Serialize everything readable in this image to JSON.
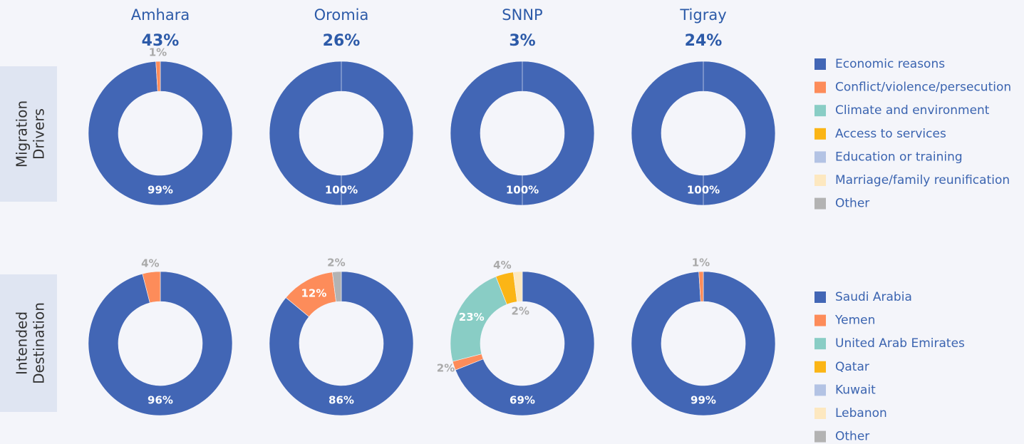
{
  "region_shares": {
    "values": [
      43,
      26,
      3,
      24
    ],
    "value_labels": [
      "43%",
      "26%",
      "3%",
      "24%"
    ]
  },
  "chart_data": [
    {
      "type": "donut",
      "row_label": [
        "Migration",
        "Drivers"
      ],
      "categories": [
        "Economic reasons",
        "Conflict/violence/persecution",
        "Climate and environment",
        "Access to services",
        "Education or training",
        "Marriage/family reunification",
        "Other"
      ],
      "colors": [
        "#4266b5",
        "#fd8c5a",
        "#89cdc5",
        "#fbb516",
        "#b3c3e4",
        "#fde8c0",
        "#b3b3b3"
      ],
      "series": [
        {
          "name": "Amhara",
          "values": [
            99,
            1,
            null,
            null,
            null,
            null,
            null
          ],
          "value_labels": [
            "99%",
            "1%",
            null,
            null,
            null,
            null,
            null
          ]
        },
        {
          "name": "Oromia",
          "values": [
            100,
            null,
            null,
            null,
            null,
            null,
            null
          ],
          "value_labels": [
            "100%",
            null,
            null,
            null,
            null,
            null,
            null
          ]
        },
        {
          "name": "SNNP",
          "values": [
            100,
            null,
            null,
            null,
            null,
            null,
            null
          ],
          "value_labels": [
            "100%",
            null,
            null,
            null,
            null,
            null,
            null
          ]
        },
        {
          "name": "Tigray",
          "values": [
            100,
            null,
            null,
            null,
            null,
            null,
            null
          ],
          "value_labels": [
            "100%",
            null,
            null,
            null,
            null,
            null,
            null
          ]
        }
      ]
    },
    {
      "type": "donut",
      "row_label": [
        "Intended",
        "Destination"
      ],
      "categories": [
        "Saudi Arabia",
        "Yemen",
        "United Arab Emirates",
        "Qatar",
        "Kuwait",
        "Lebanon",
        "Other"
      ],
      "colors": [
        "#4266b5",
        "#fd8c5a",
        "#89cdc5",
        "#fbb516",
        "#b3c3e4",
        "#fde8c0",
        "#b3b3b3"
      ],
      "series": [
        {
          "name": "Amhara",
          "values": [
            96,
            4,
            null,
            null,
            null,
            null,
            null
          ],
          "value_labels": [
            "96%",
            "4%",
            null,
            null,
            null,
            null,
            null
          ]
        },
        {
          "name": "Oromia",
          "values": [
            86,
            12,
            null,
            null,
            null,
            null,
            2
          ],
          "value_labels": [
            "86%",
            "12%",
            null,
            null,
            null,
            null,
            "2%"
          ]
        },
        {
          "name": "SNNP",
          "values": [
            69,
            2,
            23,
            4,
            null,
            2,
            null
          ],
          "value_labels": [
            "69%",
            "2%",
            "23%",
            "4%",
            null,
            "2%",
            null
          ]
        },
        {
          "name": "Tigray",
          "values": [
            99,
            1,
            null,
            null,
            null,
            null,
            null
          ],
          "value_labels": [
            "99%",
            "1%",
            null,
            null,
            null,
            null,
            null
          ]
        }
      ]
    }
  ]
}
